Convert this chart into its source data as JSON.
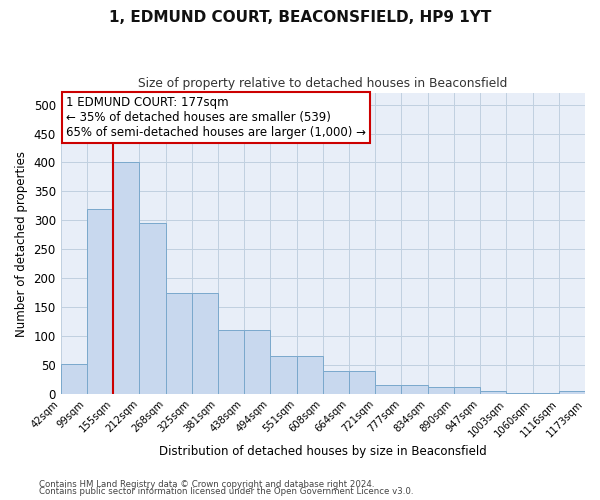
{
  "title": "1, EDMUND COURT, BEACONSFIELD, HP9 1YT",
  "subtitle": "Size of property relative to detached houses in Beaconsfield",
  "xlabel": "Distribution of detached houses by size in Beaconsfield",
  "ylabel": "Number of detached properties",
  "bin_labels": [
    "42sqm",
    "99sqm",
    "155sqm",
    "212sqm",
    "268sqm",
    "325sqm",
    "381sqm",
    "438sqm",
    "494sqm",
    "551sqm",
    "608sqm",
    "664sqm",
    "721sqm",
    "777sqm",
    "834sqm",
    "890sqm",
    "947sqm",
    "1003sqm",
    "1060sqm",
    "1116sqm",
    "1173sqm"
  ],
  "bar_values": [
    52,
    320,
    400,
    295,
    175,
    175,
    110,
    110,
    65,
    65,
    40,
    40,
    15,
    15,
    12,
    12,
    5,
    2,
    2,
    5
  ],
  "bar_color": "#c8d8ee",
  "bar_edge_color": "#7aa8cc",
  "vline_pos": 2.0,
  "vline_color": "#cc0000",
  "annotation_text": "1 EDMUND COURT: 177sqm\n← 35% of detached houses are smaller (539)\n65% of semi-detached houses are larger (1,000) →",
  "annotation_box_facecolor": "#ffffff",
  "annotation_box_edgecolor": "#cc0000",
  "ylim": [
    0,
    520
  ],
  "yticks": [
    0,
    50,
    100,
    150,
    200,
    250,
    300,
    350,
    400,
    450,
    500
  ],
  "grid_color": "#c0d0e0",
  "axes_bg_color": "#e8eef8",
  "footer_line1": "Contains HM Land Registry data © Crown copyright and database right 2024.",
  "footer_line2": "Contains public sector information licensed under the Open Government Licence v3.0.",
  "fig_width": 6.0,
  "fig_height": 5.0,
  "dpi": 100
}
